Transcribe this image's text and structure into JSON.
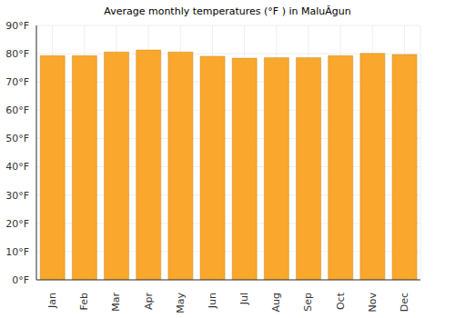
{
  "chart_data": {
    "type": "bar",
    "title": "Average monthly temperatures (°F ) in MaluĂgun",
    "categories": [
      "Jan",
      "Feb",
      "Mar",
      "Apr",
      "May",
      "Jun",
      "Jul",
      "Aug",
      "Sep",
      "Oct",
      "Nov",
      "Dec"
    ],
    "values": [
      79.3,
      79.3,
      80.6,
      81.3,
      80.6,
      79.1,
      78.4,
      78.6,
      78.6,
      79.3,
      80.1,
      79.7
    ],
    "color": "#f9a72d",
    "ylim": [
      0,
      90
    ],
    "yticks": [
      {
        "value": 0,
        "label": "0°F"
      },
      {
        "value": 10,
        "label": "10°F"
      },
      {
        "value": 20,
        "label": "20°F"
      },
      {
        "value": 30,
        "label": "30°F"
      },
      {
        "value": 40,
        "label": "40°F"
      },
      {
        "value": 50,
        "label": "50°F"
      },
      {
        "value": 60,
        "label": "60°F"
      },
      {
        "value": 70,
        "label": "70°F"
      },
      {
        "value": 80,
        "label": "80°F"
      },
      {
        "value": 90,
        "label": "90°F"
      }
    ],
    "grid": true
  }
}
